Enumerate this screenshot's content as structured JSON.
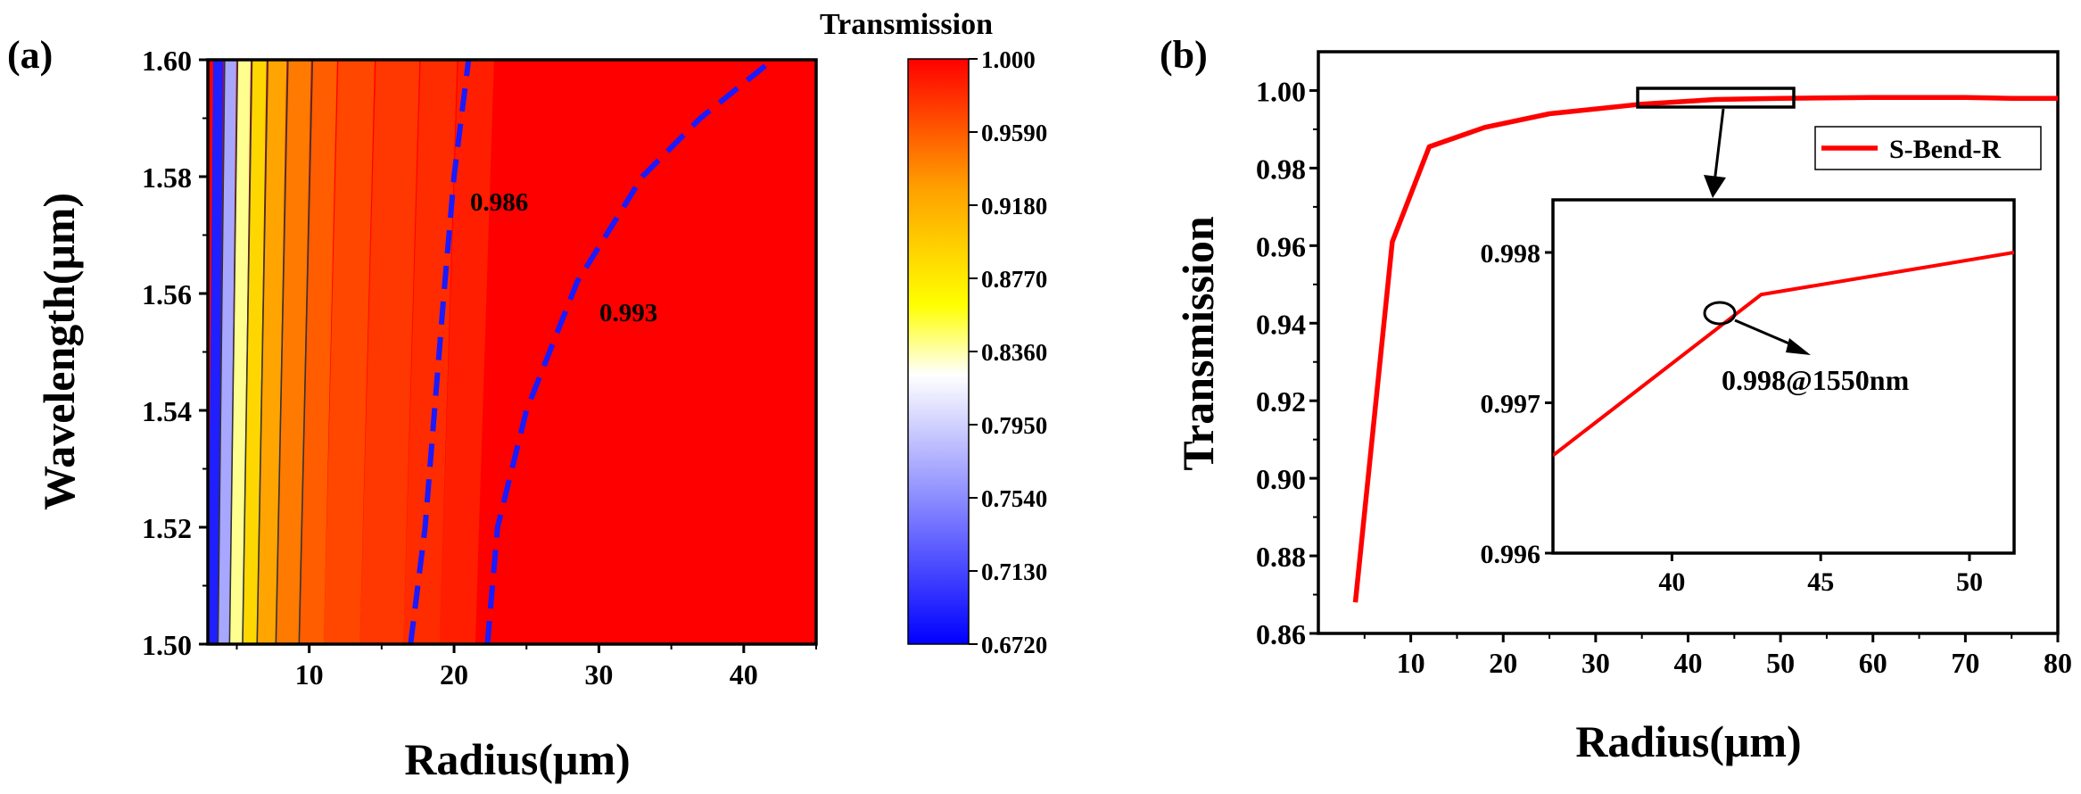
{
  "chart_data": [
    {
      "panel_label": "(a)",
      "type": "heatmap",
      "xlabel": "Radius(μm)",
      "ylabel": "Wavelength(μm)",
      "xlim": [
        3,
        45
      ],
      "ylim": [
        1.5,
        1.6
      ],
      "xticks": [
        10,
        20,
        30,
        40
      ],
      "yticks": [
        1.5,
        1.52,
        1.54,
        1.56,
        1.58,
        1.6
      ],
      "ytick_labels": [
        "1.50",
        "1.52",
        "1.54",
        "1.56",
        "1.58",
        "1.60"
      ],
      "colorbar": {
        "title": "Transmission",
        "min": 0.672,
        "max": 1.0,
        "ticks": [
          "1.000",
          "0.9590",
          "0.9180",
          "0.8770",
          "0.8360",
          "0.7950",
          "0.7540",
          "0.7130",
          "0.6720"
        ],
        "colors": [
          "#0000ff",
          "#8888ff",
          "#ffffff",
          "#ffff00",
          "#ffa500",
          "#ff0000"
        ]
      },
      "contour_bands": [
        {
          "x": 3.0,
          "value": 0.69
        },
        {
          "x": 3.7,
          "value": 0.77
        },
        {
          "x": 4.5,
          "value": 0.84
        },
        {
          "x": 5.4,
          "value": 0.89
        },
        {
          "x": 6.4,
          "value": 0.925
        },
        {
          "x": 7.7,
          "value": 0.945
        },
        {
          "x": 9.3,
          "value": 0.958
        },
        {
          "x": 11.0,
          "value": 0.968
        },
        {
          "x": 13.5,
          "value": 0.975
        },
        {
          "x": 16.5,
          "value": 0.98
        },
        {
          "x": 19.0,
          "value": 0.986
        }
      ],
      "contour_lines": [
        {
          "label": "0.986",
          "points": [
            [
              17.0,
              1.5
            ],
            [
              18.0,
              1.52
            ],
            [
              19.3,
              1.56
            ],
            [
              20.0,
              1.58
            ],
            [
              21.0,
              1.6
            ]
          ]
        },
        {
          "label": "0.993",
          "points": [
            [
              22.3,
              1.5
            ],
            [
              23.0,
              1.52
            ],
            [
              25.0,
              1.54
            ],
            [
              28.5,
              1.562
            ],
            [
              31.0,
              1.572
            ],
            [
              33.0,
              1.58
            ],
            [
              37.0,
              1.59
            ],
            [
              42.0,
              1.6
            ]
          ]
        }
      ]
    },
    {
      "panel_label": "(b)",
      "type": "line",
      "xlabel": "Radius(μm)",
      "ylabel": "Transmission",
      "xlim": [
        0,
        80
      ],
      "ylim": [
        0.86,
        1.01
      ],
      "xticks": [
        10,
        20,
        30,
        40,
        50,
        60,
        70,
        80
      ],
      "yticks": [
        0.86,
        0.88,
        0.9,
        0.92,
        0.94,
        0.96,
        0.98,
        1.0
      ],
      "ytick_labels": [
        "0.86",
        "0.88",
        "0.90",
        "0.92",
        "0.94",
        "0.96",
        "0.98",
        "1.00"
      ],
      "series": [
        {
          "name": "S-Bend-R",
          "color": "#ff0000",
          "x": [
            4,
            8,
            12,
            18,
            25,
            35,
            43,
            50,
            60,
            70,
            75,
            80
          ],
          "y": [
            0.868,
            0.961,
            0.9855,
            0.9905,
            0.994,
            0.9965,
            0.9977,
            0.998,
            0.9982,
            0.9982,
            0.998,
            0.998
          ]
        }
      ],
      "inset": {
        "xlim": [
          36,
          51.5
        ],
        "ylim": [
          0.996,
          0.99835
        ],
        "xticks": [
          40,
          45,
          50
        ],
        "yticks": [
          "0.996",
          "0.997",
          "0.998"
        ],
        "x": [
          36,
          43,
          51.5
        ],
        "y": [
          0.99665,
          0.99772,
          0.998
        ],
        "annotation": "0.998@1550nm"
      }
    }
  ]
}
